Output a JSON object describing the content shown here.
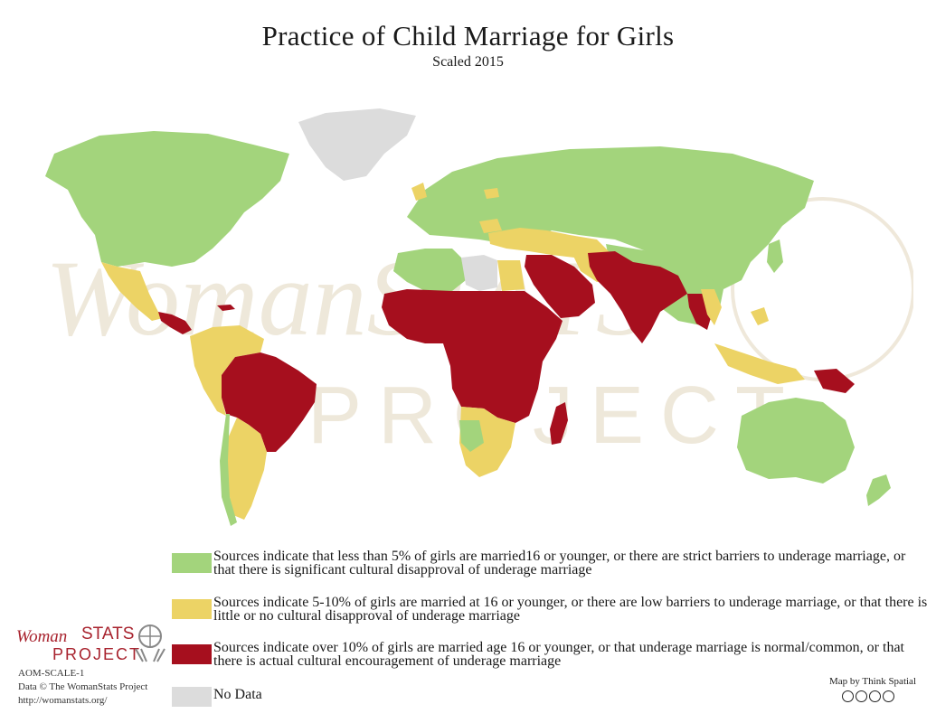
{
  "title": "Practice of Child Marriage for Girls",
  "subtitle": "Scaled 2015",
  "watermark": {
    "line1": "WomanSTATS",
    "line2": "PROJECT"
  },
  "colors": {
    "low": "#a3d47c",
    "medium": "#ecd365",
    "high": "#a60f1e",
    "no_data": "#dcdcdc",
    "watermark": "#ede6d6"
  },
  "legend": [
    {
      "key": "low",
      "color": "#a3d47c",
      "text": "Sources indicate that less than 5% of girls are married16 or younger, or there are strict barriers to underage marriage, or that there is significant cultural disapproval of underage marriage"
    },
    {
      "key": "medium",
      "color": "#ecd365",
      "text": "Sources indicate 5-10% of girls are married at 16 or younger, or there are low barriers to underage marriage, or that there is little or no cultural disapproval of underage marriage"
    },
    {
      "key": "high",
      "color": "#a60f1e",
      "text": "Sources indicate over 10% of girls are married age 16 or younger, or that underage marriage is normal/common, or that there is actual cultural encouragement of underage marriage"
    },
    {
      "key": "no_data",
      "color": "#dcdcdc",
      "text": "No Data"
    }
  ],
  "logo": {
    "word1": "Woman",
    "word2": "STATS",
    "word3": "PROJECT"
  },
  "credits": {
    "code": "AOM-SCALE-1",
    "copyright": "Data © The WomanStats Project",
    "url": "http://womanstats.org/"
  },
  "map_by": "Map by Think Spatial",
  "license_icons": [
    "cc-icon",
    "by-icon",
    "nc-icon",
    "nd-icon"
  ]
}
